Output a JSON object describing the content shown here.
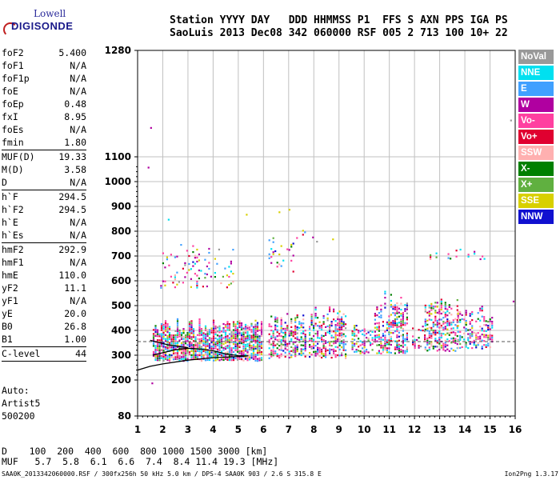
{
  "logo": {
    "line1": "Lowell",
    "line2": "DIGISONDE"
  },
  "header": {
    "line1": "Station YYYY DAY   DDD HHMMSS P1  FFS S AXN PPS IGA PS",
    "line2": "SaoLuis 2013 Dec08 342 060000 RSF 005 2 713 100 10+ 22"
  },
  "params": [
    {
      "label": "foF2",
      "value": "5.400"
    },
    {
      "label": "foF1",
      "value": "N/A"
    },
    {
      "label": "foF1p",
      "value": "N/A"
    },
    {
      "label": "foE",
      "value": "N/A"
    },
    {
      "label": "foEp",
      "value": "0.48"
    },
    {
      "label": "fxI",
      "value": "8.95"
    },
    {
      "label": "foEs",
      "value": "N/A"
    },
    {
      "label": "fmin",
      "value": "1.80",
      "sep": true
    },
    {
      "label": "MUF(D)",
      "value": "19.33"
    },
    {
      "label": "M(D)",
      "value": "3.58"
    },
    {
      "label": "D",
      "value": "N/A",
      "sep": true
    },
    {
      "label": "h`F",
      "value": "294.5"
    },
    {
      "label": "h`F2",
      "value": "294.5"
    },
    {
      "label": "h`E",
      "value": "N/A"
    },
    {
      "label": "h`Es",
      "value": "N/A",
      "sep": true
    },
    {
      "label": "hmF2",
      "value": "292.9"
    },
    {
      "label": "hmF1",
      "value": "N/A"
    },
    {
      "label": "hmE",
      "value": "110.0"
    },
    {
      "label": "yF2",
      "value": "11.1"
    },
    {
      "label": "yF1",
      "value": "N/A"
    },
    {
      "label": "yE",
      "value": "20.0"
    },
    {
      "label": "B0",
      "value": "26.8"
    },
    {
      "label": "B1",
      "value": "1.00",
      "sep": true
    },
    {
      "label": "C-level",
      "value": "44",
      "sep": true
    }
  ],
  "auto": {
    "line1": "Auto:",
    "line2": "Artist5",
    "line3": "500200"
  },
  "bottom": {
    "d_line": "D    100  200  400  600  800 1000 1500 3000 [km]",
    "muf_line": "MUF   5.7  5.8  6.1  6.6  7.4  8.4 11.4 19.3 [MHz]"
  },
  "footer": {
    "left": "SAA0K_2013342060000.RSF / 300fx256h 50 kHz 5.0 km / DPS-4 SAA0K 903 / 2.6 S 315.8 E",
    "right": "Ion2Png 1.3.17"
  },
  "legend": [
    {
      "label": "NoVal",
      "color": "#999999"
    },
    {
      "label": "NNE",
      "color": "#00e0f0"
    },
    {
      "label": "E",
      "color": "#40a0ff"
    },
    {
      "label": "W",
      "color": "#b000a0"
    },
    {
      "label": "Vo-",
      "color": "#ff40a0"
    },
    {
      "label": "Vo+",
      "color": "#e00030"
    },
    {
      "label": "SSW",
      "color": "#ffb0b0"
    },
    {
      "label": "X-",
      "color": "#008000"
    },
    {
      "label": "X+",
      "color": "#60b040"
    },
    {
      "label": "SSE",
      "color": "#d8d000"
    },
    {
      "label": "NNW",
      "color": "#1010d0"
    }
  ],
  "chart_data": {
    "type": "scatter",
    "x_ticks": [
      "1",
      "2",
      "3",
      "4",
      "5",
      "6",
      "7",
      "8",
      "9",
      "10",
      "11",
      "12",
      "13",
      "14",
      "15",
      "16"
    ],
    "y_ticks": [
      "80",
      "200",
      "300",
      "400",
      "500",
      "600",
      "700",
      "800",
      "900",
      "1000",
      "1100",
      "1280"
    ],
    "x_range": [
      1,
      16
    ],
    "y_range_label": [
      80,
      1280
    ],
    "grid": true,
    "echo_clusters": [
      {
        "f_min": 1.6,
        "f_max": 5.9,
        "h_min": 280,
        "h_max": 450,
        "density": 0.8
      },
      {
        "f_min": 6.2,
        "f_max": 7.7,
        "h_min": 290,
        "h_max": 470,
        "density": 0.55
      },
      {
        "f_min": 7.8,
        "f_max": 9.3,
        "h_min": 290,
        "h_max": 500,
        "density": 0.55
      },
      {
        "f_min": 9.5,
        "f_max": 10.3,
        "h_min": 310,
        "h_max": 430,
        "density": 0.4
      },
      {
        "f_min": 10.4,
        "f_max": 11.7,
        "h_min": 310,
        "h_max": 560,
        "density": 0.5
      },
      {
        "f_min": 11.9,
        "f_max": 12.4,
        "h_min": 330,
        "h_max": 430,
        "density": 0.35
      },
      {
        "f_min": 12.4,
        "f_max": 13.7,
        "h_min": 320,
        "h_max": 530,
        "density": 0.5
      },
      {
        "f_min": 13.7,
        "f_max": 15.1,
        "h_min": 330,
        "h_max": 500,
        "density": 0.45
      },
      {
        "f_min": 1.9,
        "f_max": 4.8,
        "h_min": 570,
        "h_max": 760,
        "density": 0.12
      },
      {
        "f_min": 6.2,
        "f_max": 7.3,
        "h_min": 640,
        "h_max": 800,
        "density": 0.08
      },
      {
        "f_min": 7.3,
        "f_max": 8.8,
        "h_min": 760,
        "h_max": 810,
        "density": 0.08
      },
      {
        "f_min": 12.6,
        "f_max": 14.8,
        "h_min": 690,
        "h_max": 740,
        "density": 0.12
      }
    ],
    "trace_curves": [
      {
        "points": [
          [
            1.0,
            240
          ],
          [
            1.5,
            255
          ],
          [
            2.0,
            265
          ],
          [
            3.0,
            280
          ],
          [
            4.0,
            290
          ],
          [
            5.0,
            295
          ],
          [
            5.4,
            297
          ]
        ]
      },
      {
        "points": [
          [
            1.6,
            300
          ],
          [
            2.0,
            310
          ],
          [
            2.5,
            322
          ],
          [
            3.0,
            328
          ],
          [
            3.5,
            325
          ],
          [
            4.0,
            318
          ],
          [
            4.5,
            305
          ],
          [
            5.0,
            298
          ],
          [
            5.4,
            297
          ]
        ]
      },
      {
        "points": [
          [
            1.5,
            360
          ],
          [
            2.2,
            342
          ],
          [
            3.0,
            330
          ]
        ]
      }
    ],
    "reference_line": {
      "h": 355
    }
  }
}
